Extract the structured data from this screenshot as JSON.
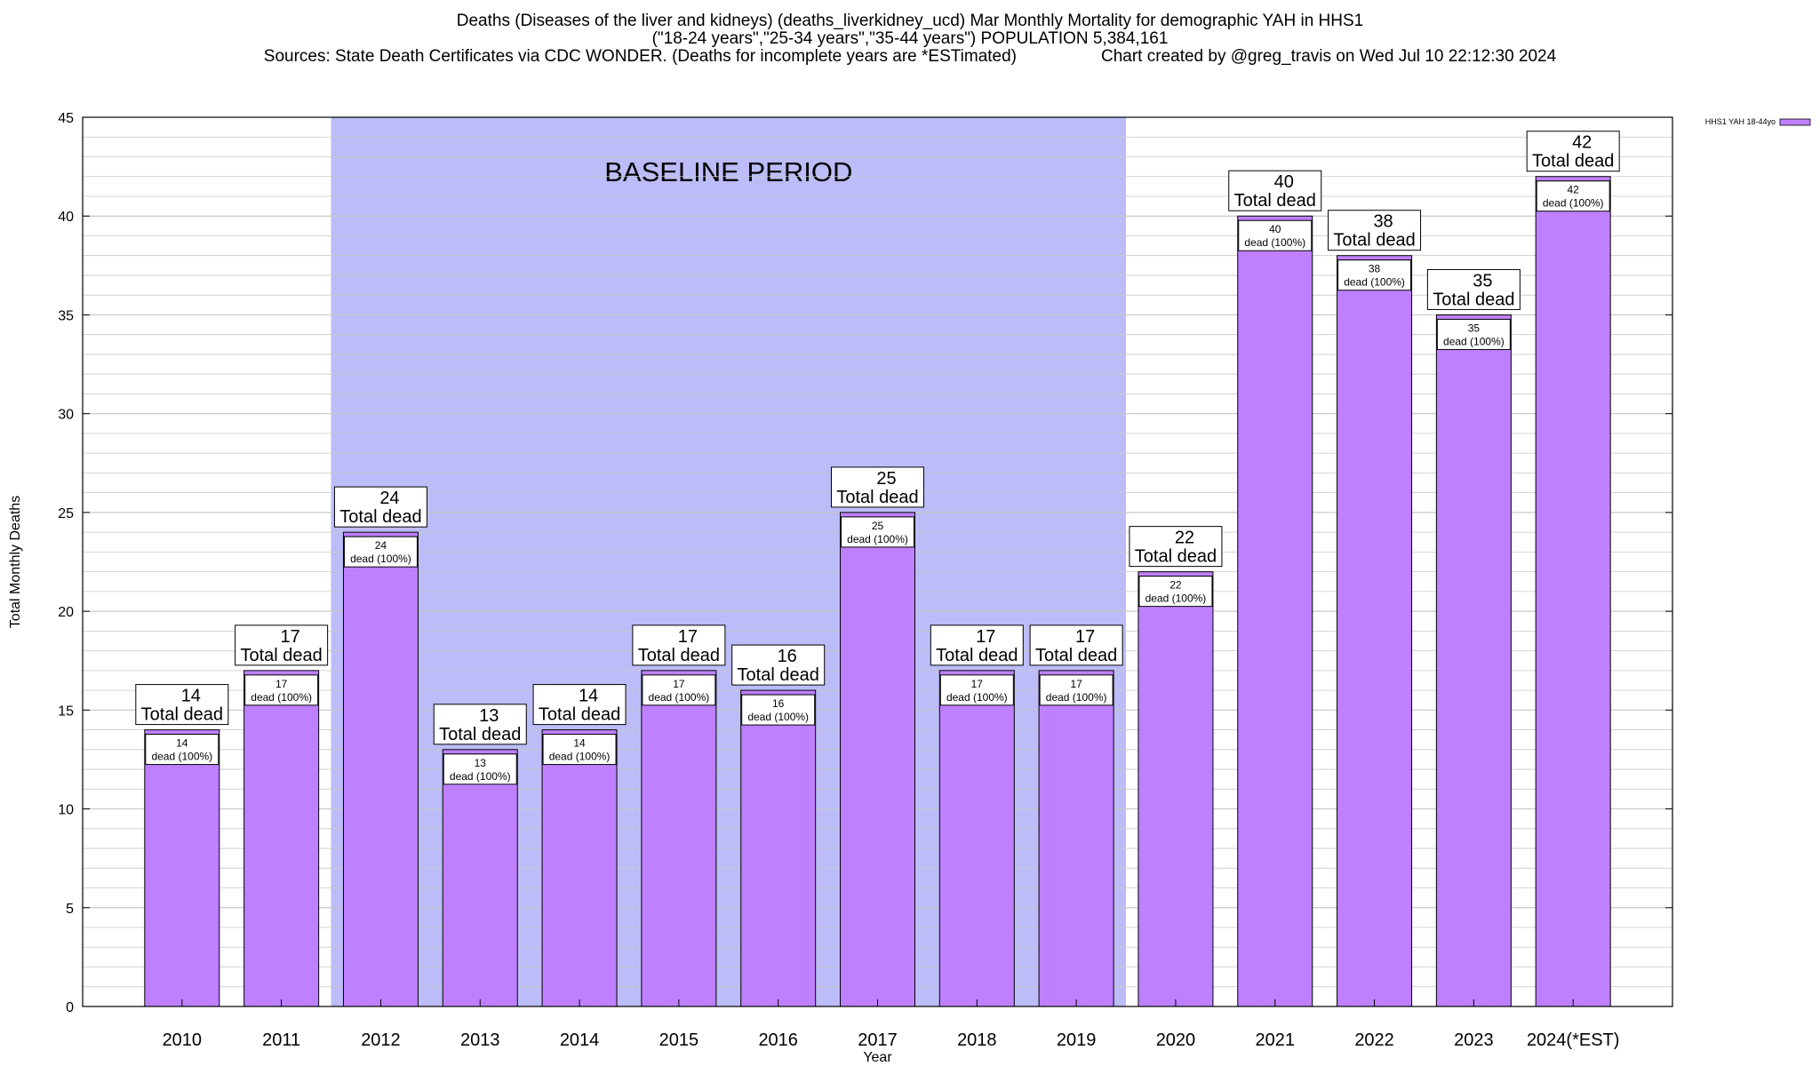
{
  "title": {
    "line1": "Deaths (Diseases of the liver and kidneys) (deaths_liverkidney_ucd) Mar Monthly Mortality for demographic YAH in HHS1",
    "line2": "(\"18-24 years\",\"25-34 years\",\"35-44 years\") POPULATION 5,384,161",
    "sources": "Sources: State Death Certificates via CDC WONDER. (Deaths for incomplete years are *ESTimated)",
    "credit": "Chart created by @greg_travis on Wed Jul 10 22:12:30 2024"
  },
  "colors": {
    "bar": "#bf80ff",
    "baseline_shade": "#bcbcf8",
    "grid": "#c8c8c8",
    "frame": "#000000"
  },
  "chart_data": {
    "type": "bar",
    "xlabel": "Year",
    "ylabel": "Total Monthly Deaths",
    "ylim": [
      0,
      45
    ],
    "y_ticks": [
      0,
      5,
      10,
      15,
      20,
      25,
      30,
      35,
      40,
      45
    ],
    "y_minor_step": 1,
    "grid": true,
    "legend_position": "top-right",
    "categories": [
      "2010",
      "2011",
      "2012",
      "2013",
      "2014",
      "2015",
      "2016",
      "2017",
      "2018",
      "2019",
      "2020",
      "2021",
      "2022",
      "2023",
      "2024(*EST)"
    ],
    "series": [
      {
        "name": "HHS1 YAH 18-44yo",
        "values": [
          14,
          17,
          24,
          13,
          14,
          17,
          16,
          25,
          17,
          17,
          22,
          40,
          38,
          35,
          42
        ]
      }
    ],
    "total_label": "Total dead",
    "inner_label": "dead (100%)",
    "baseline": {
      "label": "BASELINE PERIOD",
      "start": "2012",
      "end": "2019"
    }
  }
}
